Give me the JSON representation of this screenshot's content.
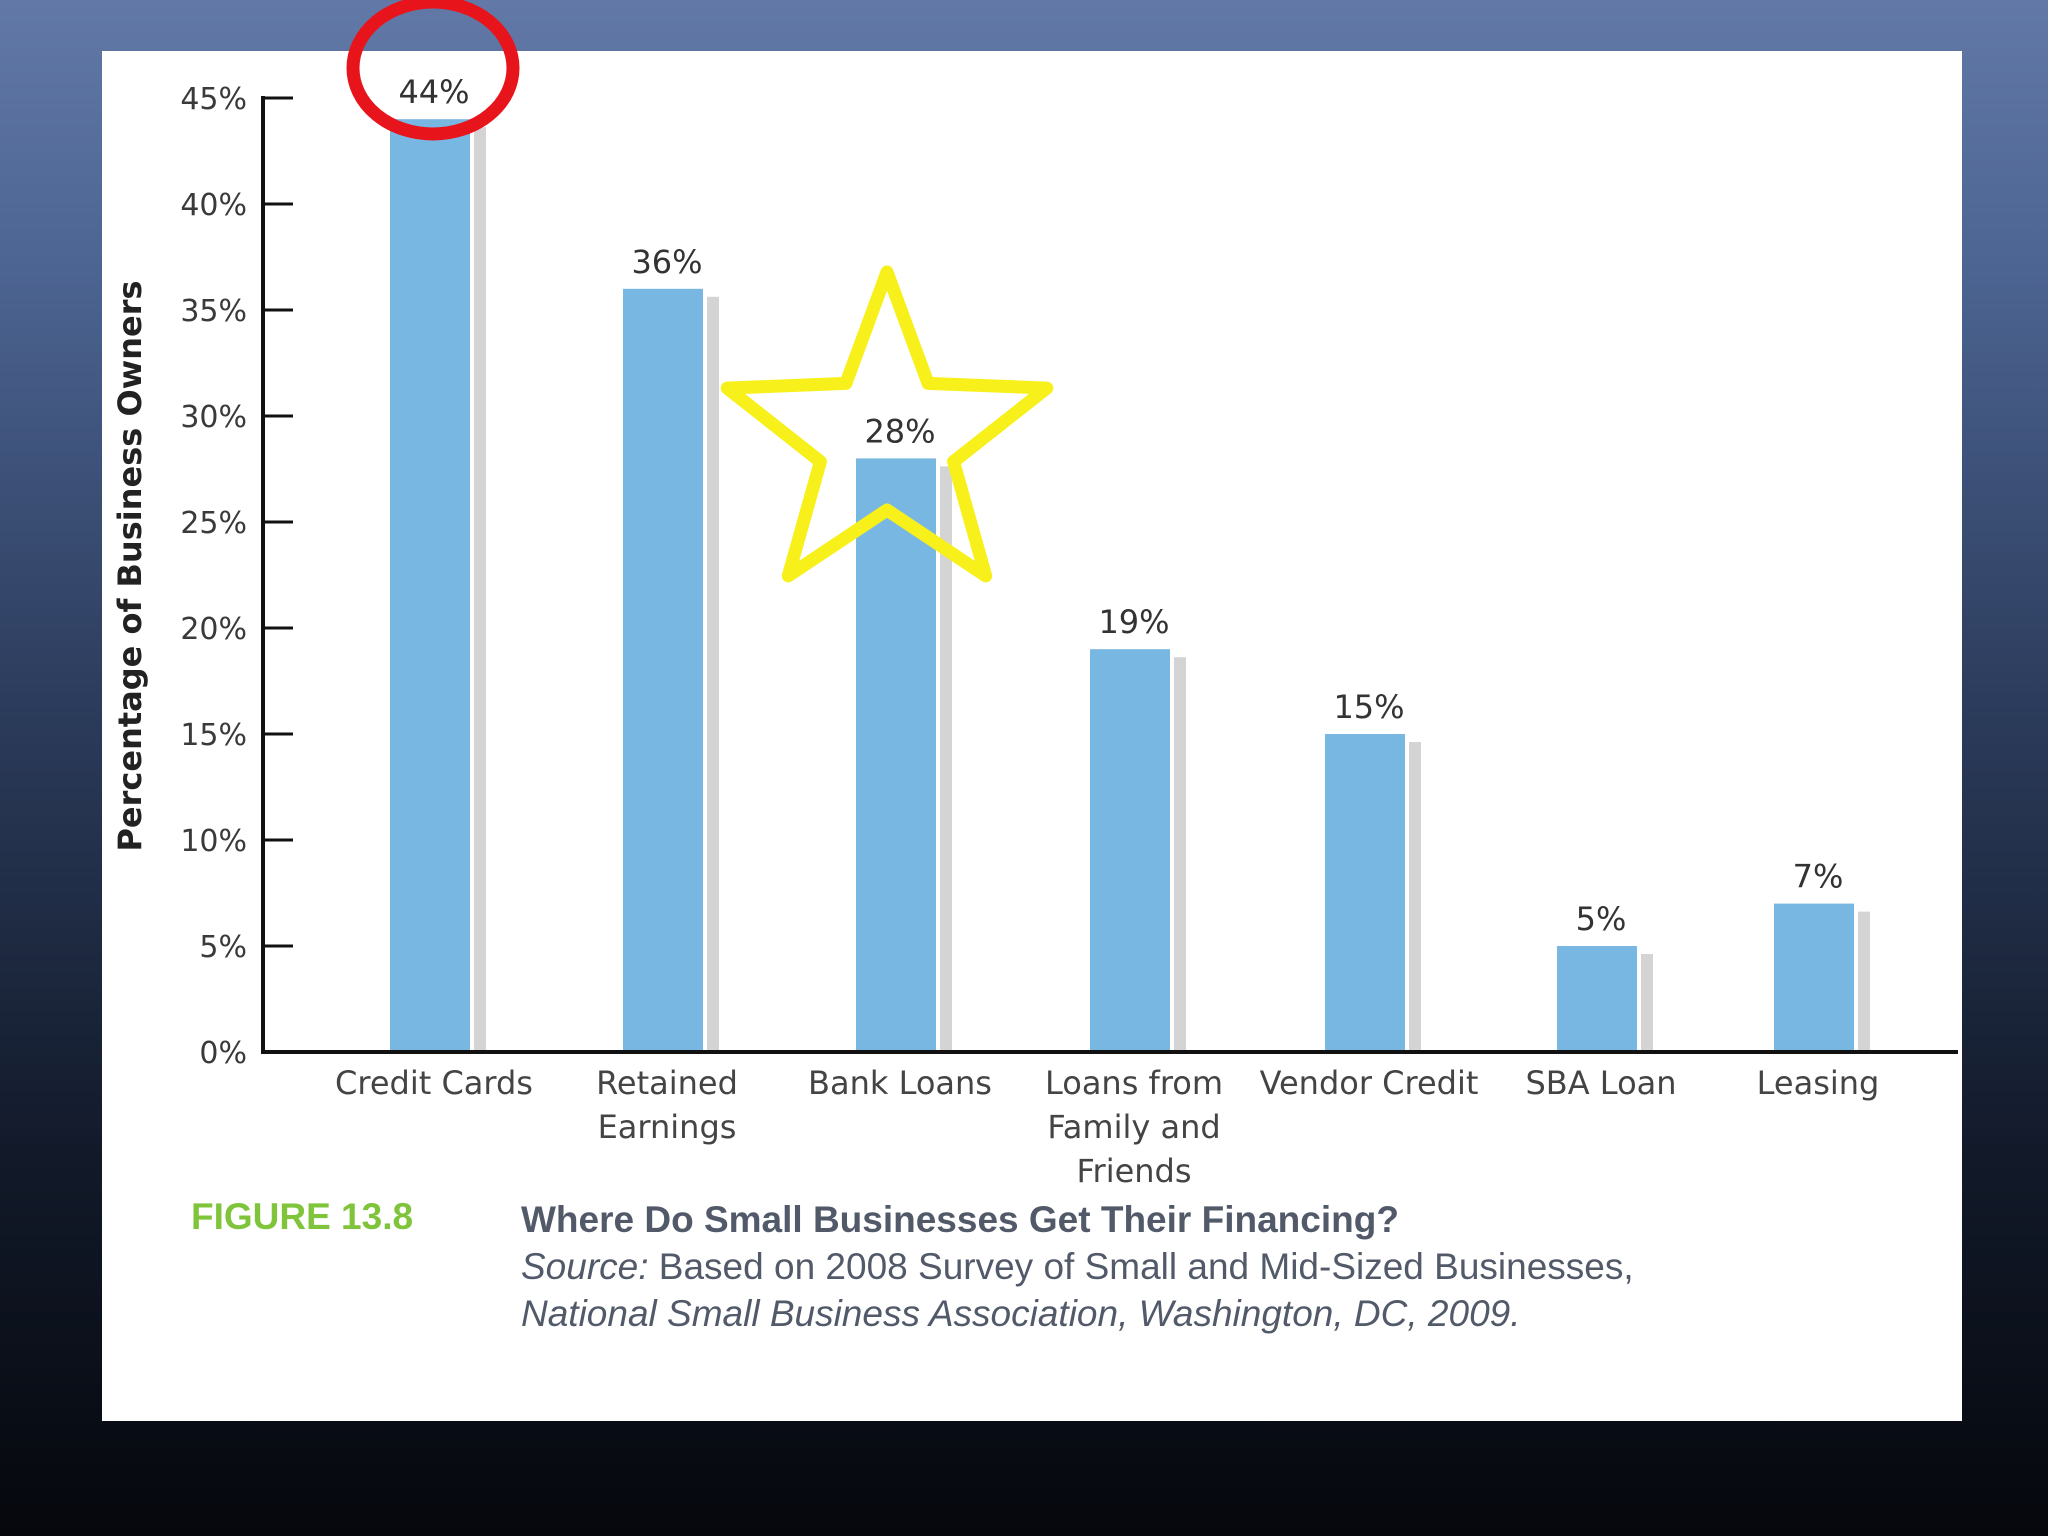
{
  "chart_data": {
    "type": "bar",
    "categories": [
      "Credit Cards",
      "Retained Earnings",
      "Bank Loans",
      "Loans from Family and Friends",
      "Vendor Credit",
      "SBA Loan",
      "Leasing"
    ],
    "category_lines": [
      [
        "Credit Cards"
      ],
      [
        "Retained",
        "Earnings"
      ],
      [
        "Bank Loans"
      ],
      [
        "Loans from",
        "Family and",
        "Friends"
      ],
      [
        "Vendor Credit"
      ],
      [
        "SBA Loan"
      ],
      [
        "Leasing"
      ]
    ],
    "values": [
      44,
      36,
      28,
      19,
      15,
      5,
      7
    ],
    "value_labels": [
      "44%",
      "36%",
      "28%",
      "19%",
      "15%",
      "5%",
      "7%"
    ],
    "ylabel": "Percentage of Business Owners",
    "ylim": [
      0,
      45
    ],
    "yticks": [
      0,
      5,
      10,
      15,
      20,
      25,
      30,
      35,
      40,
      45
    ],
    "ytick_labels": [
      "0%",
      "5%",
      "10%",
      "15%",
      "20%",
      "25%",
      "30%",
      "35%",
      "40%",
      "45%"
    ],
    "grid": false,
    "bar_color": "#79b7e3",
    "shadow_color": "#d4d4d4",
    "annotations": [
      {
        "shape": "circle",
        "target": "Credit Cards",
        "color": "#e8141c"
      },
      {
        "shape": "star",
        "target": "Bank Loans",
        "color": "#f7f01b"
      }
    ]
  },
  "caption": {
    "figure_number": "FIGURE 13.8",
    "title": "Where Do Small Businesses Get Their Financing?",
    "source_label": "Source:",
    "source_text": " Based on 2008 Survey of Small and Mid-Sized Businesses,",
    "source_line2": "National Small Business Association, Washington, DC, 2009.",
    "figure_number_color": "#7fc43b",
    "text_color": "#525a6a"
  }
}
